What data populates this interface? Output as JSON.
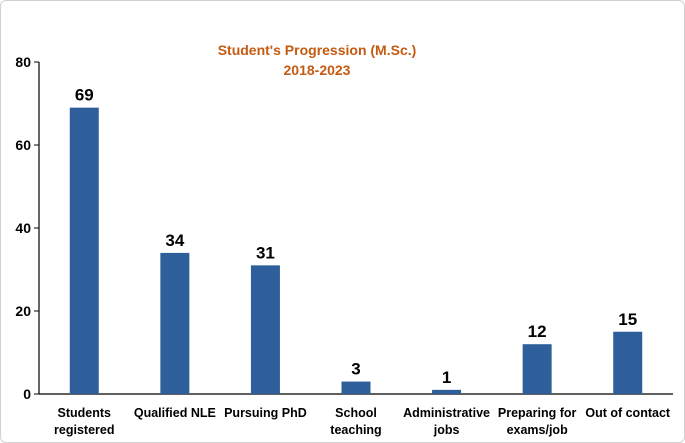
{
  "chart_data": {
    "type": "bar",
    "title": "Student's Progression (M.Sc.)",
    "subtitle": "2018-2023",
    "categories": [
      [
        "Students",
        "registered"
      ],
      [
        "Qualified NLE"
      ],
      [
        "Pursuing PhD"
      ],
      [
        "School",
        "teaching"
      ],
      [
        "Administrative",
        "jobs"
      ],
      [
        "Preparing for",
        "exams/job"
      ],
      [
        "Out of contact"
      ]
    ],
    "values": [
      69,
      34,
      31,
      3,
      1,
      12,
      15
    ],
    "data_labels": [
      "69",
      "34",
      "31",
      "3",
      "1",
      "12",
      "15"
    ],
    "ylim": [
      0,
      80
    ],
    "yticks": [
      "0",
      "20",
      "40",
      "60",
      "80"
    ],
    "bar_color": "#2e5f9b",
    "grid": false,
    "legend": "none"
  }
}
